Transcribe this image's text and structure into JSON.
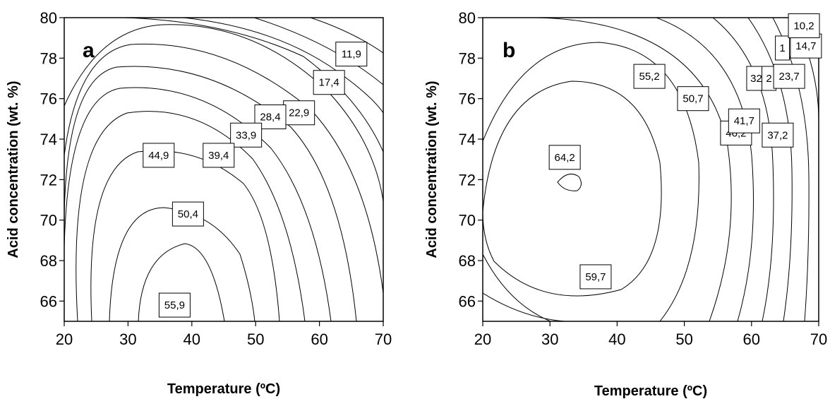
{
  "chart_data": [
    {
      "type": "contour",
      "panel": "a",
      "xlabel": "Temperature (ºC)",
      "ylabel": "Acid concentration (wt. %)",
      "xlim": [
        20,
        70
      ],
      "ylim": [
        65,
        80
      ],
      "xticks": [
        "20",
        "30",
        "40",
        "50",
        "60",
        "70"
      ],
      "yticks": [
        "66",
        "68",
        "70",
        "72",
        "74",
        "76",
        "78",
        "80"
      ],
      "grid": false,
      "contour_labels": [
        {
          "text": "11,9",
          "x": 65,
          "y": 78.2
        },
        {
          "text": "17,4",
          "x": 61.5,
          "y": 76.8
        },
        {
          "text": "22,9",
          "x": 56.8,
          "y": 75.3
        },
        {
          "text": "28,4",
          "x": 52.3,
          "y": 75.1
        },
        {
          "text": "33,9",
          "x": 48.5,
          "y": 74.2
        },
        {
          "text": "39,4",
          "x": 44.2,
          "y": 73.2
        },
        {
          "text": "44,9",
          "x": 34.8,
          "y": 73.2
        },
        {
          "text": "50,4",
          "x": 39.4,
          "y": 70.3
        },
        {
          "text": "55,9",
          "x": 37.3,
          "y": 65.8
        }
      ]
    },
    {
      "type": "contour",
      "panel": "b",
      "xlabel": "Temperature (ºC)",
      "ylabel": "Acid concentration (wt. %)",
      "xlim": [
        20,
        70
      ],
      "ylim": [
        65,
        80
      ],
      "xticks": [
        "20",
        "30",
        "40",
        "50",
        "60",
        "70"
      ],
      "yticks": [
        "66",
        "68",
        "70",
        "72",
        "74",
        "76",
        "78",
        "80"
      ],
      "grid": false,
      "contour_labels": [
        {
          "text": "64,2",
          "x": 32.2,
          "y": 73.1
        },
        {
          "text": "59,7",
          "x": 36.8,
          "y": 67.2
        },
        {
          "text": "55,2",
          "x": 44.8,
          "y": 77.1
        },
        {
          "text": "50,7",
          "x": 51.3,
          "y": 76.0
        },
        {
          "text": "46,2",
          "x": 57.7,
          "y": 74.3
        },
        {
          "text": "41,7",
          "x": 58.9,
          "y": 74.9
        },
        {
          "text": "37,2",
          "x": 63.9,
          "y": 74.2
        },
        {
          "text": "32",
          "x": 60.7,
          "y": 77.0
        },
        {
          "text": "2",
          "x": 62.6,
          "y": 77.0
        },
        {
          "text": "23,7",
          "x": 65.6,
          "y": 77.1
        },
        {
          "text": "1",
          "x": 64.6,
          "y": 78.5
        },
        {
          "text": "14,7",
          "x": 68.1,
          "y": 78.6
        },
        {
          "text": "10,2",
          "x": 67.8,
          "y": 79.6
        }
      ]
    }
  ]
}
